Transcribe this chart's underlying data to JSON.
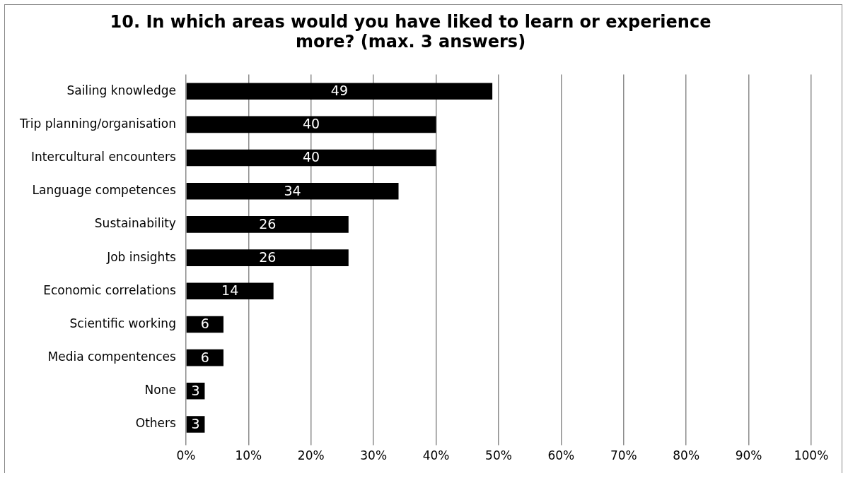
{
  "chart_data": {
    "type": "bar",
    "orientation": "horizontal",
    "title": "10. In which areas would you have liked to learn or experience more? (max. 3 answers)",
    "categories": [
      "Sailing knowledge",
      "Trip planning/organisation",
      "Intercultural encounters",
      "Language competences",
      "Sustainability",
      "Job insights",
      "Economic correlations",
      "Scientific working",
      "Media compentences",
      "None",
      "Others"
    ],
    "values": [
      49,
      40,
      40,
      34,
      26,
      26,
      14,
      6,
      6,
      3,
      3
    ],
    "color": "#000000",
    "xlim": [
      0,
      100
    ],
    "xticks": [
      {
        "value": 0,
        "label": "0%"
      },
      {
        "value": 10,
        "label": "10%"
      },
      {
        "value": 20,
        "label": "20%"
      },
      {
        "value": 30,
        "label": "30%"
      },
      {
        "value": 40,
        "label": "40%"
      },
      {
        "value": 50,
        "label": "50%"
      },
      {
        "value": 60,
        "label": "60%"
      },
      {
        "value": 70,
        "label": "70%"
      },
      {
        "value": 80,
        "label": "80%"
      },
      {
        "value": 90,
        "label": "90%"
      },
      {
        "value": 100,
        "label": "100%"
      }
    ],
    "grid": "x",
    "legend": false,
    "data_labels": true
  }
}
